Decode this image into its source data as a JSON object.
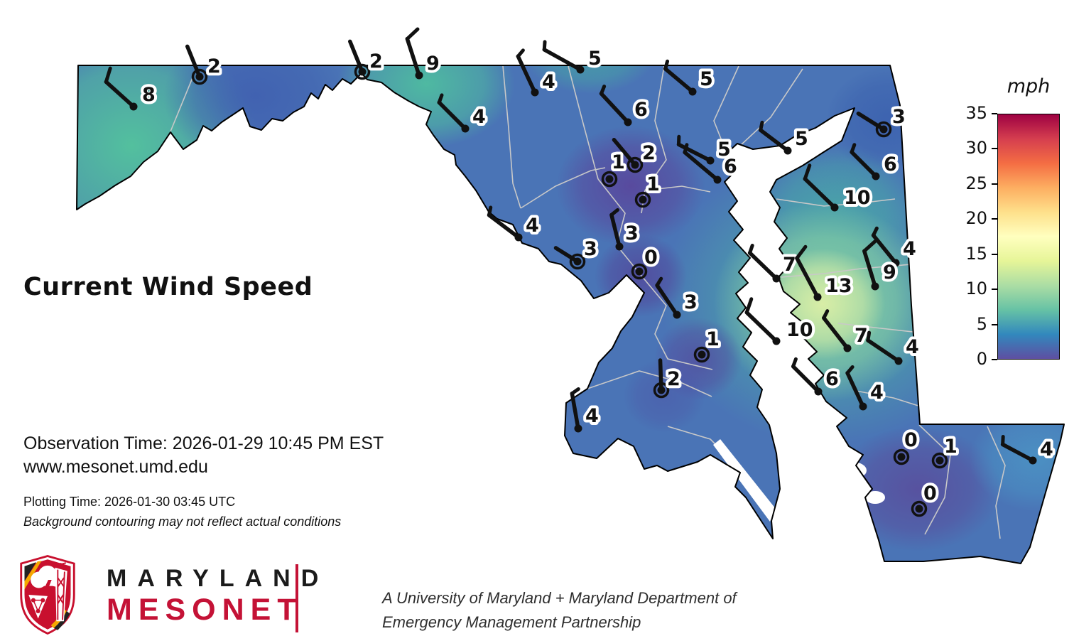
{
  "header": {
    "title": "Current Wind Speed"
  },
  "info": {
    "observation_line": "Observation Time: 2026-01-29 10:45 PM EST",
    "website": "www.mesonet.umd.edu",
    "plotting_line": "Plotting Time: 2026-01-30 03:45 UTC",
    "disclaimer": "Background contouring may not reflect actual conditions"
  },
  "footer": {
    "brand_line1": "MARYLAND",
    "brand_line2": "MESONET",
    "tagline_line1": "A University of Maryland + Maryland Department of",
    "tagline_line2": "Emergency Management Partnership"
  },
  "colorbar": {
    "title": "mph",
    "min": 0,
    "max": 35,
    "tick_labels": [
      0,
      5,
      10,
      15,
      20,
      25,
      30,
      35
    ],
    "gradient_colors": [
      "#5e4fa2",
      "#3288bd",
      "#66c2a5",
      "#abdda4",
      "#e6f598",
      "#ffffbf",
      "#fee08b",
      "#fdae61",
      "#f46d43",
      "#d53e4f",
      "#9e0142"
    ]
  },
  "chart_data": {
    "type": "map",
    "subtype": "station-wind-barb-map",
    "region": "Maryland",
    "units": "mph",
    "title": "Current Wind Speed",
    "colorbar_range": [
      0,
      35
    ],
    "station_fields": [
      "x",
      "y",
      "mph",
      "barb_dir_deg",
      "barb_len",
      "full_barbs",
      "half_barbs",
      "calm_circle",
      "label_dx",
      "label_dy"
    ],
    "stations": [
      [
        188,
        150,
        8,
        138,
        52,
        1,
        0,
        0,
        12,
        -8
      ],
      [
        281,
        108,
        2,
        112,
        46,
        0,
        0,
        1,
        11,
        -6
      ],
      [
        510,
        101,
        2,
        112,
        46,
        0,
        0,
        1,
        10,
        -6
      ],
      [
        590,
        106,
        9,
        108,
        54,
        1,
        0,
        0,
        10,
        -8
      ],
      [
        753,
        130,
        4,
        115,
        56,
        0,
        1,
        0,
        10,
        -6
      ],
      [
        817,
        98,
        5,
        151,
        58,
        0,
        1,
        0,
        11,
        -7
      ],
      [
        655,
        181,
        4,
        135,
        52,
        0,
        1,
        0,
        10,
        -8
      ],
      [
        975,
        129,
        5,
        140,
        50,
        0,
        1,
        0,
        10,
        -9
      ],
      [
        884,
        172,
        6,
        133,
        55,
        0,
        1,
        0,
        9,
        -9
      ],
      [
        1109,
        212,
        5,
        143,
        48,
        0,
        1,
        0,
        10,
        -8
      ],
      [
        1244,
        182,
        3,
        148,
        42,
        0,
        0,
        1,
        12,
        -9
      ],
      [
        1233,
        248,
        6,
        135,
        48,
        0,
        1,
        0,
        11,
        -8
      ],
      [
        1000,
        226,
        5,
        153,
        50,
        0,
        1,
        0,
        10,
        -7
      ],
      [
        1010,
        253,
        6,
        140,
        60,
        0,
        1,
        0,
        9,
        -10
      ],
      [
        894,
        232,
        2,
        130,
        46,
        0,
        0,
        1,
        10,
        -8
      ],
      [
        858,
        252,
        1,
        0,
        0,
        0,
        0,
        1,
        3,
        -15
      ],
      [
        905,
        281,
        1,
        0,
        0,
        0,
        0,
        1,
        5,
        -13
      ],
      [
        1175,
        292,
        10,
        136,
        58,
        1,
        0,
        0,
        13,
        -5
      ],
      [
        730,
        334,
        4,
        143,
        52,
        0,
        1,
        0,
        10,
        -8
      ],
      [
        872,
        347,
        3,
        104,
        46,
        0,
        1,
        0,
        8,
        -10
      ],
      [
        813,
        368,
        3,
        148,
        36,
        0,
        0,
        1,
        9,
        -9
      ],
      [
        900,
        382,
        0,
        0,
        0,
        0,
        0,
        1,
        7,
        -11
      ],
      [
        1261,
        370,
        4,
        129,
        50,
        0,
        1,
        0,
        10,
        -11
      ],
      [
        1232,
        403,
        9,
        107,
        52,
        1,
        0,
        0,
        11,
        -11
      ],
      [
        1093,
        392,
        7,
        136,
        52,
        0,
        1,
        0,
        9,
        -11
      ],
      [
        1151,
        418,
        13,
        118,
        62,
        1,
        0,
        0,
        11,
        -7
      ],
      [
        1093,
        480,
        10,
        136,
        58,
        1,
        0,
        0,
        14,
        -7
      ],
      [
        1193,
        490,
        7,
        128,
        54,
        0,
        1,
        0,
        10,
        -9
      ],
      [
        1265,
        508,
        4,
        146,
        52,
        0,
        1,
        0,
        10,
        -11
      ],
      [
        1152,
        551,
        6,
        135,
        50,
        0,
        1,
        0,
        10,
        -9
      ],
      [
        1215,
        572,
        4,
        115,
        52,
        0,
        1,
        0,
        10,
        -11
      ],
      [
        953,
        443,
        3,
        124,
        50,
        0,
        1,
        0,
        10,
        -9
      ],
      [
        988,
        499,
        1,
        0,
        0,
        0,
        0,
        1,
        6,
        -13
      ],
      [
        931,
        549,
        2,
        92,
        42,
        0,
        0,
        1,
        8,
        -7
      ],
      [
        814,
        603,
        4,
        100,
        50,
        0,
        1,
        0,
        10,
        -9
      ],
      [
        1269,
        643,
        0,
        0,
        0,
        0,
        0,
        1,
        4,
        -15
      ],
      [
        1323,
        648,
        1,
        0,
        0,
        0,
        0,
        1,
        6,
        -11
      ],
      [
        1454,
        648,
        4,
        152,
        48,
        0,
        1,
        0,
        10,
        -7
      ],
      [
        1294,
        716,
        0,
        0,
        0,
        0,
        0,
        1,
        6,
        -13
      ]
    ]
  }
}
